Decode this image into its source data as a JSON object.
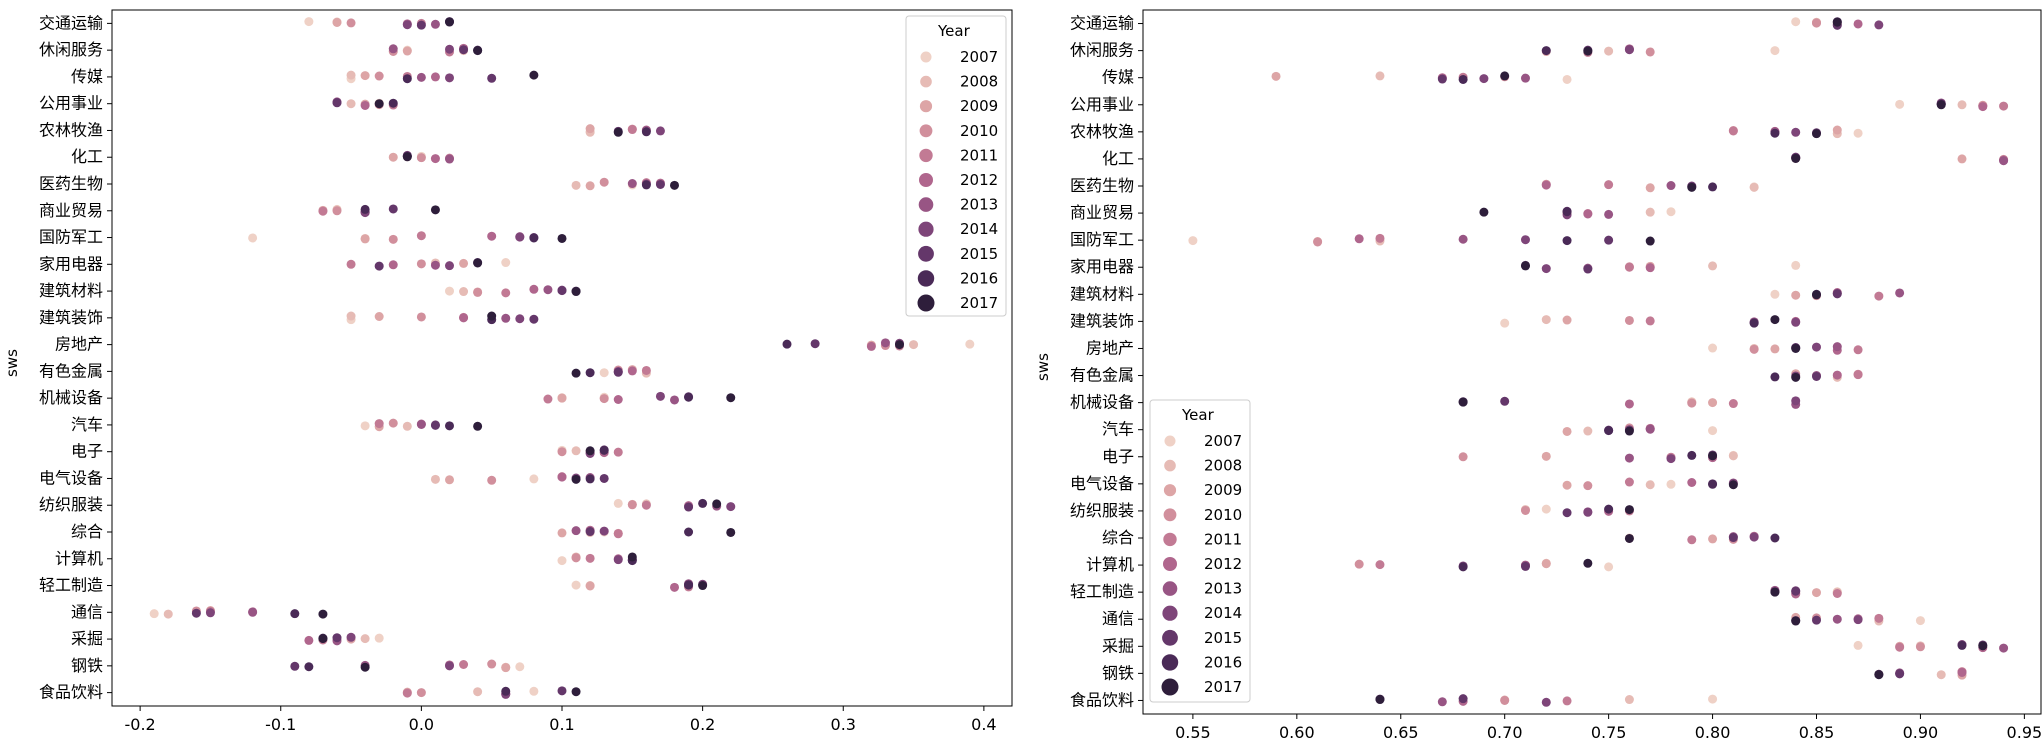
{
  "chart_data": [
    {
      "type": "scatter",
      "ylabel": "sws",
      "xlim": [
        -0.22,
        0.42
      ],
      "xticks": [
        -0.2,
        -0.1,
        0.0,
        0.1,
        0.2,
        0.3,
        0.4
      ],
      "xtick_labels": [
        "-0.2",
        "-0.1",
        "0.0",
        "0.1",
        "0.2",
        "0.3",
        "0.4"
      ],
      "legend": {
        "title": "Year",
        "position": "top-right"
      },
      "categories": [
        "交通运输",
        "休闲服务",
        "传媒",
        "公用事业",
        "农林牧渔",
        "化工",
        "医药生物",
        "商业贸易",
        "国防军工",
        "家用电器",
        "建筑材料",
        "建筑装饰",
        "房地产",
        "有色金属",
        "机械设备",
        "汽车",
        "电子",
        "电气设备",
        "纺织服装",
        "综合",
        "计算机",
        "轻工制造",
        "通信",
        "采掘",
        "钢铁",
        "食品饮料"
      ],
      "series": [
        {
          "name": "2007",
          "values": [
            -0.08,
            -0.01,
            -0.05,
            -0.03,
            0.12,
            0.0,
            0.15,
            -0.06,
            -0.12,
            0.06,
            0.02,
            -0.05,
            0.39,
            0.13,
            0.13,
            -0.04,
            0.1,
            0.08,
            0.14,
            0.13,
            0.1,
            0.11,
            -0.19,
            -0.03,
            0.07,
            0.08
          ]
        },
        {
          "name": "2008",
          "values": [
            -0.06,
            0.03,
            -0.05,
            -0.05,
            0.12,
            -0.01,
            0.11,
            -0.06,
            -0.04,
            0.01,
            0.03,
            -0.05,
            0.35,
            0.16,
            0.1,
            -0.01,
            0.11,
            0.01,
            0.16,
            0.12,
            0.11,
            0.12,
            -0.18,
            -0.04,
            0.06,
            0.04
          ]
        },
        {
          "name": "2009",
          "values": [
            -0.06,
            -0.01,
            -0.04,
            -0.04,
            0.12,
            -0.02,
            0.12,
            -0.07,
            -0.04,
            0.03,
            0.04,
            -0.03,
            0.32,
            0.15,
            0.1,
            -0.03,
            0.12,
            0.02,
            0.15,
            0.1,
            0.11,
            0.12,
            -0.15,
            -0.05,
            0.06,
            -0.01
          ]
        },
        {
          "name": "2010",
          "values": [
            -0.05,
            -0.02,
            -0.03,
            -0.03,
            0.15,
            0.0,
            0.13,
            -0.06,
            -0.02,
            0.0,
            0.04,
            0.0,
            0.33,
            0.14,
            0.13,
            -0.02,
            0.1,
            0.05,
            0.15,
            0.14,
            0.11,
            0.19,
            -0.16,
            -0.06,
            0.05,
            0.0
          ]
        },
        {
          "name": "2011",
          "values": [
            0.0,
            0.02,
            -0.01,
            -0.02,
            0.15,
            0.02,
            0.16,
            -0.07,
            0.0,
            -0.05,
            0.06,
            0.03,
            0.34,
            0.16,
            0.09,
            -0.03,
            0.14,
            0.1,
            0.16,
            0.14,
            0.12,
            0.19,
            -0.15,
            -0.07,
            0.03,
            -0.01
          ]
        },
        {
          "name": "2012",
          "values": [
            -0.01,
            0.03,
            0.01,
            -0.04,
            0.16,
            0.01,
            0.17,
            -0.04,
            0.05,
            -0.02,
            0.08,
            0.03,
            0.32,
            0.15,
            0.14,
            0.0,
            0.13,
            0.1,
            0.19,
            0.12,
            0.14,
            0.18,
            -0.12,
            -0.08,
            0.02,
            0.06
          ]
        },
        {
          "name": "2013",
          "values": [
            0.01,
            -0.02,
            0.0,
            -0.06,
            0.16,
            0.02,
            0.15,
            -0.04,
            0.07,
            0.01,
            0.09,
            0.06,
            0.33,
            0.14,
            0.18,
            0.0,
            0.12,
            0.12,
            0.21,
            0.11,
            0.15,
            0.19,
            -0.12,
            -0.06,
            -0.04,
            0.06
          ]
        },
        {
          "name": "2014",
          "values": [
            -0.01,
            0.02,
            0.02,
            -0.06,
            0.17,
            -0.01,
            0.16,
            -0.04,
            0.07,
            0.02,
            0.1,
            0.07,
            0.34,
            0.14,
            0.17,
            0.01,
            0.12,
            0.11,
            0.22,
            0.13,
            0.14,
            0.2,
            -0.15,
            -0.05,
            0.02,
            0.06
          ]
        },
        {
          "name": "2015",
          "values": [
            0.0,
            0.03,
            0.05,
            -0.06,
            0.14,
            -0.01,
            0.17,
            -0.02,
            0.08,
            -0.03,
            0.1,
            0.08,
            0.28,
            0.14,
            0.19,
            0.01,
            0.13,
            0.13,
            0.19,
            0.12,
            0.15,
            0.19,
            -0.16,
            -0.06,
            -0.09,
            0.1
          ]
        },
        {
          "name": "2016",
          "values": [
            0.02,
            0.04,
            -0.01,
            -0.02,
            0.16,
            -0.01,
            0.16,
            -0.04,
            0.08,
            0.04,
            0.11,
            0.05,
            0.26,
            0.12,
            0.19,
            0.02,
            0.13,
            0.12,
            0.2,
            0.19,
            0.15,
            0.19,
            -0.09,
            -0.07,
            -0.08,
            0.06
          ]
        },
        {
          "name": "2017",
          "values": [
            0.02,
            0.04,
            0.08,
            -0.03,
            0.14,
            -0.01,
            0.18,
            0.01,
            0.1,
            0.04,
            0.11,
            0.05,
            0.34,
            0.11,
            0.22,
            0.04,
            0.12,
            0.11,
            0.21,
            0.22,
            0.15,
            0.2,
            -0.07,
            -0.07,
            -0.04,
            0.11
          ]
        }
      ]
    },
    {
      "type": "scatter",
      "ylabel": "sws",
      "xlim": [
        0.526,
        0.958
      ],
      "xticks": [
        0.55,
        0.6,
        0.65,
        0.7,
        0.75,
        0.8,
        0.85,
        0.9,
        0.95
      ],
      "xtick_labels": [
        "0.55",
        "0.60",
        "0.65",
        "0.70",
        "0.75",
        "0.80",
        "0.85",
        "0.90",
        "0.95"
      ],
      "legend": {
        "title": "Year",
        "position": "bottom-left"
      },
      "categories": [
        "交通运输",
        "休闲服务",
        "传媒",
        "公用事业",
        "农林牧渔",
        "化工",
        "医药生物",
        "商业贸易",
        "国防军工",
        "家用电器",
        "建筑材料",
        "建筑装饰",
        "房地产",
        "有色金属",
        "机械设备",
        "汽车",
        "电子",
        "电气设备",
        "纺织服装",
        "综合",
        "计算机",
        "轻工制造",
        "通信",
        "采掘",
        "钢铁",
        "食品饮料"
      ],
      "series": [
        {
          "name": "2007",
          "values": [
            0.84,
            0.83,
            0.73,
            0.89,
            0.87,
            0.84,
            0.82,
            0.78,
            0.55,
            0.84,
            0.83,
            0.7,
            0.8,
            0.84,
            0.79,
            0.8,
            0.81,
            0.78,
            0.72,
            0.76,
            0.75,
            0.86,
            0.9,
            0.87,
            0.88,
            0.8
          ]
        },
        {
          "name": "2008",
          "values": [
            0.85,
            0.75,
            0.64,
            0.92,
            0.86,
            0.84,
            0.82,
            0.77,
            0.64,
            0.8,
            0.85,
            0.72,
            0.82,
            0.86,
            0.79,
            0.74,
            0.81,
            0.77,
            0.71,
            0.76,
            0.72,
            0.86,
            0.88,
            0.9,
            0.91,
            0.76
          ]
        },
        {
          "name": "2009",
          "values": [
            0.85,
            0.72,
            0.59,
            0.93,
            0.86,
            0.92,
            0.77,
            0.73,
            0.61,
            0.77,
            0.84,
            0.73,
            0.83,
            0.84,
            0.8,
            0.73,
            0.72,
            0.73,
            0.75,
            0.8,
            0.72,
            0.85,
            0.84,
            0.89,
            0.92,
            0.7
          ]
        },
        {
          "name": "2010",
          "values": [
            0.85,
            0.77,
            0.7,
            0.93,
            0.81,
            0.94,
            0.72,
            0.73,
            0.61,
            0.76,
            0.85,
            0.76,
            0.82,
            0.87,
            0.79,
            0.76,
            0.68,
            0.74,
            0.71,
            0.81,
            0.63,
            0.84,
            0.85,
            0.9,
            0.92,
            0.7
          ]
        },
        {
          "name": "2011",
          "values": [
            0.86,
            0.74,
            0.68,
            0.94,
            0.81,
            0.94,
            0.75,
            0.74,
            0.64,
            0.76,
            0.88,
            0.77,
            0.87,
            0.87,
            0.81,
            0.77,
            0.78,
            0.76,
            0.76,
            0.79,
            0.64,
            0.86,
            0.88,
            0.89,
            0.92,
            0.73
          ]
        },
        {
          "name": "2012",
          "values": [
            0.87,
            0.76,
            0.67,
            0.93,
            0.83,
            0.94,
            0.72,
            0.74,
            0.63,
            0.77,
            0.86,
            0.84,
            0.86,
            0.86,
            0.76,
            0.77,
            0.8,
            0.79,
            0.75,
            0.82,
            0.71,
            0.84,
            0.87,
            0.93,
            0.92,
            0.68
          ]
        },
        {
          "name": "2013",
          "values": [
            0.86,
            0.76,
            0.71,
            0.91,
            0.83,
            0.94,
            0.78,
            0.75,
            0.68,
            0.74,
            0.89,
            0.82,
            0.86,
            0.85,
            0.84,
            0.77,
            0.76,
            0.81,
            0.74,
            0.81,
            0.71,
            0.83,
            0.86,
            0.94,
            0.89,
            0.67
          ]
        },
        {
          "name": "2014",
          "values": [
            0.88,
            0.76,
            0.69,
            0.91,
            0.84,
            0.84,
            0.79,
            0.73,
            0.71,
            0.72,
            0.86,
            0.84,
            0.85,
            0.84,
            0.84,
            0.76,
            0.78,
            0.81,
            0.74,
            0.82,
            0.68,
            0.84,
            0.87,
            0.92,
            0.89,
            0.72
          ]
        },
        {
          "name": "2015",
          "values": [
            0.86,
            0.74,
            0.67,
            0.91,
            0.85,
            0.84,
            0.79,
            0.73,
            0.75,
            0.74,
            0.86,
            0.82,
            0.84,
            0.85,
            0.7,
            0.75,
            0.8,
            0.8,
            0.73,
            0.81,
            0.71,
            0.84,
            0.85,
            0.93,
            0.89,
            0.68
          ]
        },
        {
          "name": "2016",
          "values": [
            0.86,
            0.72,
            0.68,
            0.91,
            0.83,
            0.84,
            0.8,
            0.73,
            0.73,
            0.71,
            0.85,
            0.82,
            0.84,
            0.83,
            0.68,
            0.75,
            0.79,
            0.8,
            0.75,
            0.83,
            0.68,
            0.83,
            0.84,
            0.92,
            0.88,
            0.64
          ]
        },
        {
          "name": "2017",
          "values": [
            0.86,
            0.74,
            0.7,
            0.91,
            0.85,
            0.84,
            0.79,
            0.69,
            0.77,
            0.71,
            0.85,
            0.83,
            0.84,
            0.84,
            0.68,
            0.76,
            0.8,
            0.81,
            0.76,
            0.76,
            0.74,
            0.83,
            0.84,
            0.93,
            0.88,
            0.64
          ]
        }
      ]
    }
  ],
  "colors": {
    "2007": "#efd1c6",
    "2008": "#e6bbb5",
    "2009": "#dda5a6",
    "2010": "#d18f9c",
    "2011": "#c27a94",
    "2012": "#b0668d",
    "2013": "#985584",
    "2014": "#7e4579",
    "2015": "#64376a",
    "2016": "#4a2a57",
    "2017": "#2e1e3b"
  }
}
